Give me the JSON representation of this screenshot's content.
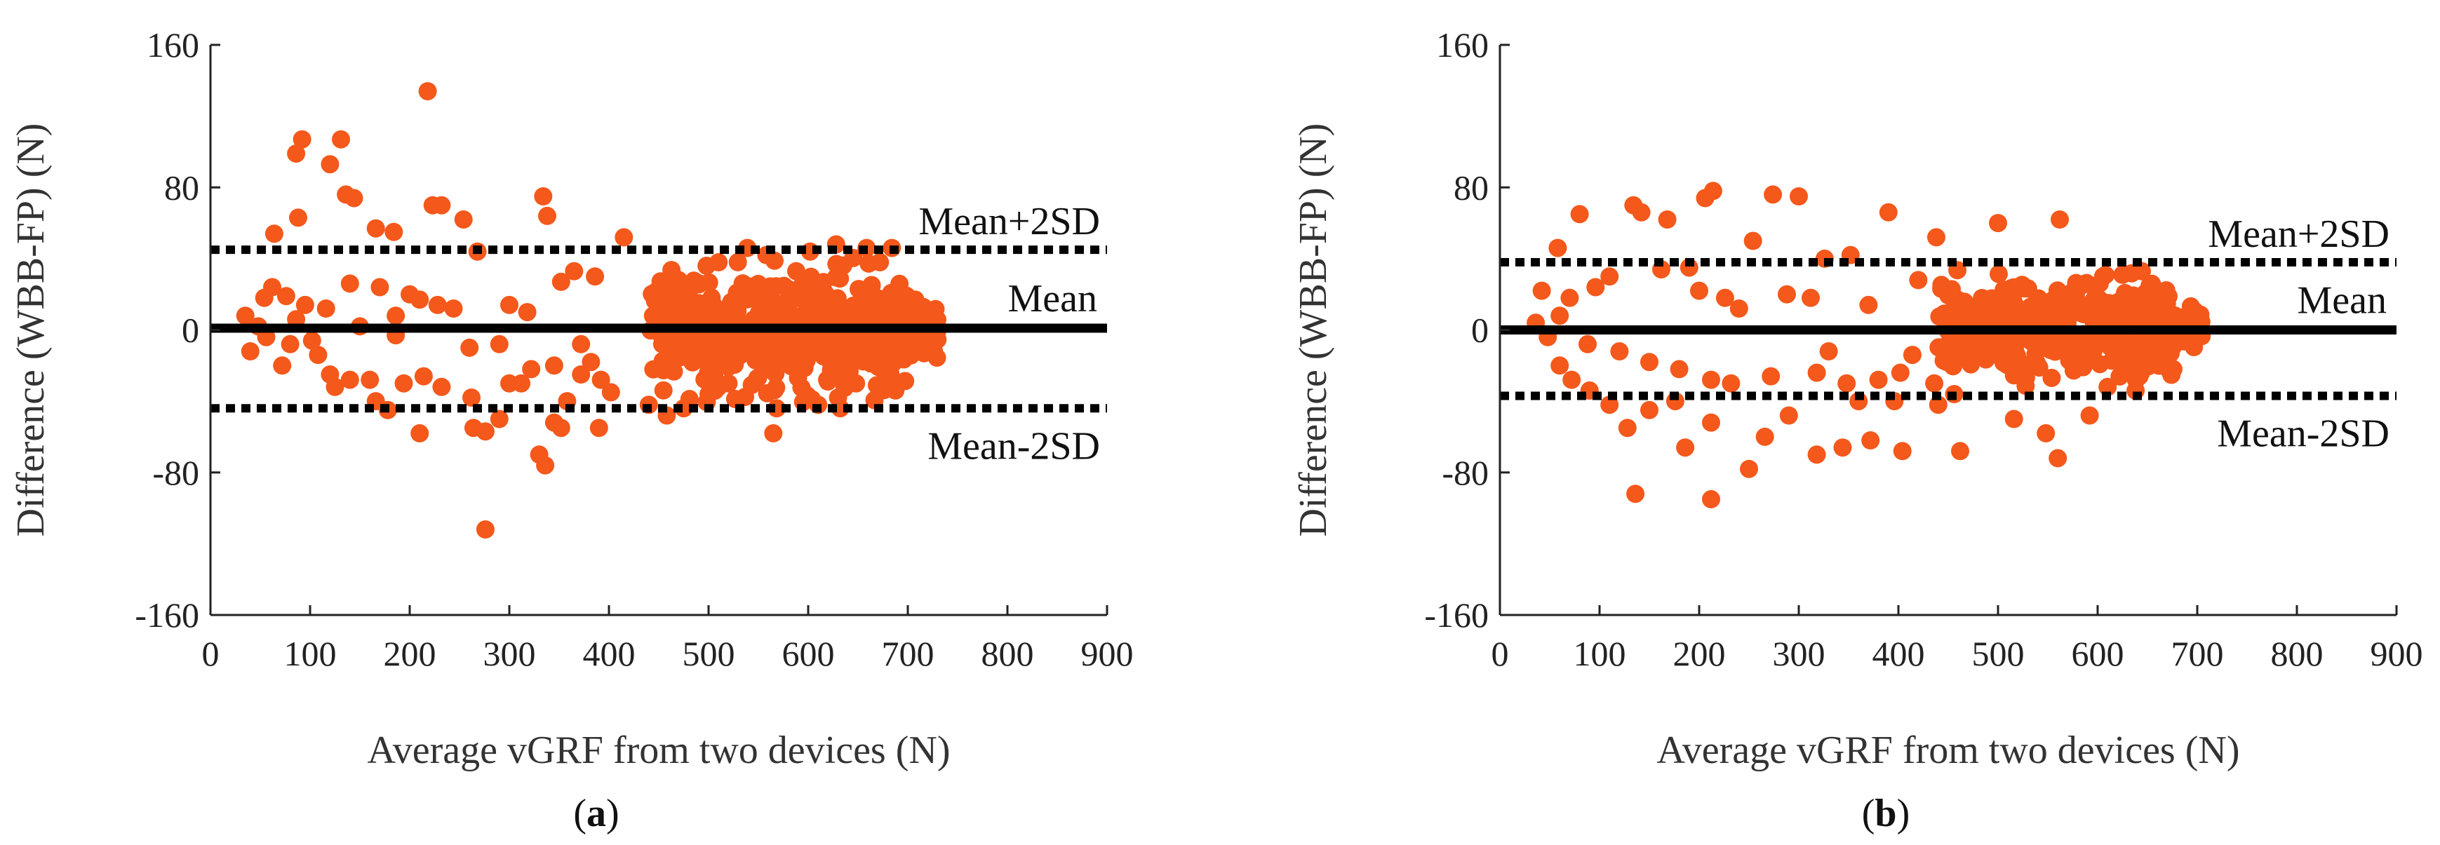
{
  "chart_data": [
    {
      "type": "scatter",
      "panel_label": "(a)",
      "panel_letter": "a",
      "xlabel": "Average vGRF from two devices (N)",
      "ylabel": "Difference (WBB-FP) (N)",
      "xlim": [
        0,
        900
      ],
      "ylim": [
        -160,
        160
      ],
      "xticks": [
        "0",
        "100",
        "200",
        "300",
        "400",
        "500",
        "600",
        "700",
        "800",
        "900"
      ],
      "yticks": [
        "160",
        "80",
        "0",
        "-80",
        "-160"
      ],
      "mean": 1,
      "upper": 45,
      "lower": -44,
      "labels": {
        "mean": "Mean",
        "upper": "Mean+2SD",
        "lower": "Mean-2SD"
      },
      "point_color": "#f4581b",
      "seed": 7,
      "points": [
        [
          218,
          134
        ],
        [
          92,
          107
        ],
        [
          131,
          107
        ],
        [
          86,
          99
        ],
        [
          120,
          93
        ],
        [
          136,
          76
        ],
        [
          144,
          74
        ],
        [
          334,
          75
        ],
        [
          223,
          70
        ],
        [
          232,
          70
        ],
        [
          254,
          62
        ],
        [
          88,
          63
        ],
        [
          338,
          64
        ],
        [
          166,
          57
        ],
        [
          184,
          55
        ],
        [
          64,
          54
        ],
        [
          415,
          52
        ],
        [
          628,
          48
        ],
        [
          268,
          44
        ],
        [
          602,
          44
        ],
        [
          558,
          42
        ],
        [
          510,
          38
        ],
        [
          498,
          36
        ],
        [
          588,
          33
        ],
        [
          672,
          38
        ],
        [
          470,
          28
        ],
        [
          455,
          26
        ],
        [
          386,
          30
        ],
        [
          352,
          27
        ],
        [
          365,
          33
        ],
        [
          140,
          26
        ],
        [
          170,
          24
        ],
        [
          62,
          24
        ],
        [
          76,
          19
        ],
        [
          54,
          18
        ],
        [
          200,
          20
        ],
        [
          210,
          17
        ],
        [
          228,
          14
        ],
        [
          244,
          12
        ],
        [
          300,
          14
        ],
        [
          318,
          10
        ],
        [
          116,
          12
        ],
        [
          35,
          8
        ],
        [
          86,
          6
        ],
        [
          102,
          -6
        ],
        [
          150,
          2
        ],
        [
          186,
          -3
        ],
        [
          260,
          -10
        ],
        [
          290,
          -8
        ],
        [
          345,
          -20
        ],
        [
          372,
          -25
        ],
        [
          392,
          -28
        ],
        [
          402,
          -35
        ],
        [
          262,
          -38
        ],
        [
          232,
          -32
        ],
        [
          194,
          -30
        ],
        [
          160,
          -28
        ],
        [
          140,
          -28
        ],
        [
          120,
          -25
        ],
        [
          210,
          -58
        ],
        [
          264,
          -55
        ],
        [
          276,
          -57
        ],
        [
          330,
          -70
        ],
        [
          336,
          -76
        ],
        [
          290,
          -50
        ],
        [
          345,
          -52
        ],
        [
          352,
          -55
        ],
        [
          390,
          -55
        ],
        [
          440,
          -42
        ],
        [
          458,
          -48
        ],
        [
          475,
          -44
        ],
        [
          500,
          -36
        ],
        [
          565,
          -58
        ],
        [
          610,
          -42
        ],
        [
          630,
          -38
        ],
        [
          648,
          -30
        ],
        [
          520,
          -30
        ],
        [
          276,
          -112
        ],
        [
          80,
          -8
        ],
        [
          72,
          -20
        ],
        [
          40,
          -12
        ],
        [
          48,
          2
        ],
        [
          56,
          -4
        ],
        [
          95,
          14
        ],
        [
          108,
          -14
        ],
        [
          125,
          -32
        ],
        [
          166,
          -40
        ],
        [
          178,
          -45
        ],
        [
          186,
          8
        ],
        [
          214,
          -26
        ],
        [
          300,
          -30
        ],
        [
          312,
          -30
        ],
        [
          322,
          -22
        ],
        [
          358,
          -40
        ],
        [
          372,
          -8
        ],
        [
          382,
          -18
        ]
      ],
      "cluster": {
        "xmin": 440,
        "xmax": 730,
        "ymin": -44,
        "ymax": 46,
        "n": 480
      }
    },
    {
      "type": "scatter",
      "panel_label": "(b)",
      "panel_letter": "b",
      "xlabel": "Average vGRF from two devices (N)",
      "ylabel": "Difference (WBB-FP) (N)",
      "xlim": [
        0,
        900
      ],
      "ylim": [
        -160,
        160
      ],
      "xticks": [
        "0",
        "100",
        "200",
        "300",
        "400",
        "500",
        "600",
        "700",
        "800",
        "900"
      ],
      "yticks": [
        "160",
        "80",
        "0",
        "-80",
        "-160"
      ],
      "mean": 0,
      "upper": 38,
      "lower": -37,
      "labels": {
        "mean": "Mean",
        "upper": "Mean+2SD",
        "lower": "Mean-2SD"
      },
      "point_color": "#f4581b",
      "seed": 19,
      "points": [
        [
          214,
          78
        ],
        [
          274,
          76
        ],
        [
          300,
          75
        ],
        [
          206,
          74
        ],
        [
          134,
          70
        ],
        [
          142,
          66
        ],
        [
          80,
          65
        ],
        [
          168,
          62
        ],
        [
          390,
          66
        ],
        [
          500,
          60
        ],
        [
          562,
          62
        ],
        [
          438,
          52
        ],
        [
          254,
          50
        ],
        [
          58,
          46
        ],
        [
          352,
          42
        ],
        [
          326,
          40
        ],
        [
          190,
          35
        ],
        [
          162,
          34
        ],
        [
          420,
          28
        ],
        [
          110,
          30
        ],
        [
          96,
          24
        ],
        [
          42,
          22
        ],
        [
          70,
          18
        ],
        [
          200,
          22
        ],
        [
          226,
          18
        ],
        [
          240,
          12
        ],
        [
          288,
          20
        ],
        [
          312,
          18
        ],
        [
          370,
          14
        ],
        [
          60,
          8
        ],
        [
          36,
          4
        ],
        [
          48,
          -4
        ],
        [
          88,
          -8
        ],
        [
          120,
          -12
        ],
        [
          150,
          -18
        ],
        [
          180,
          -22
        ],
        [
          212,
          -28
        ],
        [
          232,
          -30
        ],
        [
          272,
          -26
        ],
        [
          318,
          -24
        ],
        [
          348,
          -30
        ],
        [
          380,
          -28
        ],
        [
          402,
          -24
        ],
        [
          128,
          -55
        ],
        [
          176,
          -40
        ],
        [
          186,
          -66
        ],
        [
          212,
          -52
        ],
        [
          250,
          -78
        ],
        [
          266,
          -60
        ],
        [
          290,
          -48
        ],
        [
          318,
          -70
        ],
        [
          344,
          -66
        ],
        [
          372,
          -62
        ],
        [
          404,
          -68
        ],
        [
          462,
          -68
        ],
        [
          516,
          -50
        ],
        [
          548,
          -58
        ],
        [
          560,
          -72
        ],
        [
          592,
          -48
        ],
        [
          440,
          -42
        ],
        [
          136,
          -92
        ],
        [
          212,
          -95
        ],
        [
          90,
          -34
        ],
        [
          60,
          -20
        ],
        [
          72,
          -28
        ],
        [
          110,
          -42
        ],
        [
          150,
          -45
        ],
        [
          330,
          -12
        ],
        [
          360,
          -40
        ],
        [
          396,
          -40
        ],
        [
          414,
          -14
        ],
        [
          436,
          -30
        ],
        [
          456,
          -36
        ],
        [
          610,
          -32
        ],
        [
          642,
          -26
        ],
        [
          676,
          -22
        ]
      ],
      "cluster": {
        "xmin": 440,
        "xmax": 705,
        "ymin": -34,
        "ymax": 38,
        "n": 460
      }
    }
  ]
}
